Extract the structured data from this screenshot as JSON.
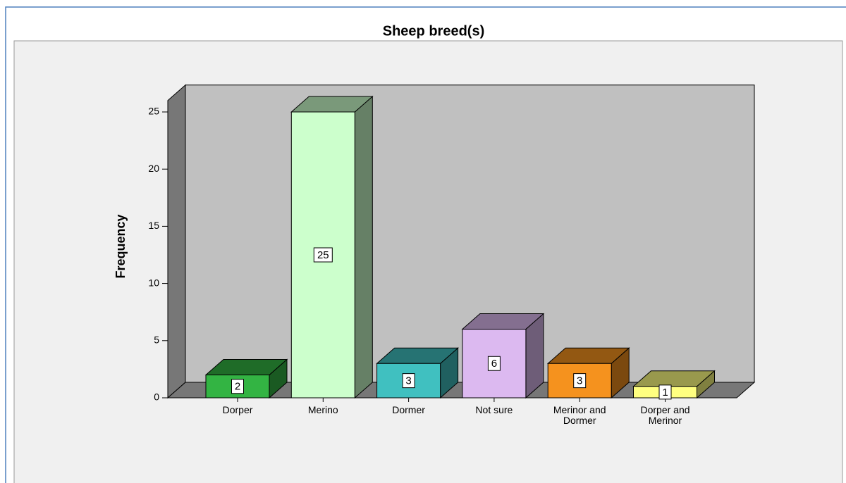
{
  "chart_data": {
    "type": "bar3d",
    "title": "Sheep breed(s)",
    "y_label": "Frequency",
    "categories": [
      "Dorper",
      "Merino",
      "Dormer",
      "Not sure",
      "Merinor and Dormer",
      "Dorper and Merinor"
    ],
    "values": [
      2,
      25,
      3,
      6,
      3,
      1
    ],
    "colors": [
      "#33b443",
      "#ccffcc",
      "#40c0c0",
      "#dcb9f0",
      "#f5921e",
      "#ffff80"
    ],
    "ylim": [
      0,
      26
    ],
    "yticks": [
      0,
      5,
      10,
      15,
      20,
      25
    ]
  }
}
